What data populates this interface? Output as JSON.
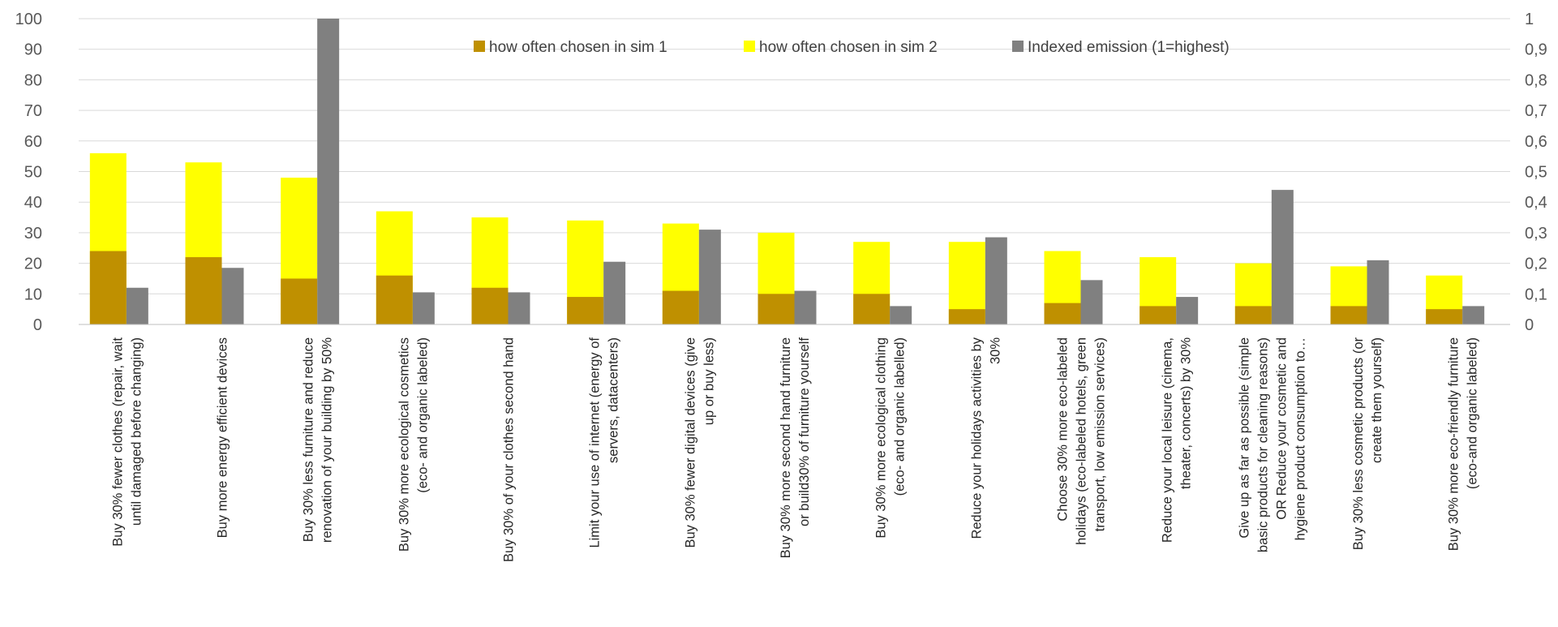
{
  "chart_data": {
    "type": "bar",
    "title": "",
    "xlabel": "",
    "ylabel": "",
    "ylim": [
      0,
      100
    ],
    "y2lim": [
      0,
      1
    ],
    "y_ticks": [
      "0",
      "10",
      "20",
      "30",
      "40",
      "50",
      "60",
      "70",
      "80",
      "90",
      "100"
    ],
    "y2_ticks": [
      "0",
      "0,1",
      "0,2",
      "0,3",
      "0,4",
      "0,5",
      "0,6",
      "0,7",
      "0,8",
      "0,9",
      "1"
    ],
    "grid": true,
    "legend_position": "top-center",
    "categories": [
      [
        "Buy 30% fewer clothes  (repair, wait",
        "until damaged before changing)"
      ],
      [
        "Buy more energy efficient devices"
      ],
      [
        "Buy 30% less furniture and reduce",
        "renovation of your building by 50%"
      ],
      [
        "Buy 30% more ecological cosmetics",
        "(eco- and organic labeled)"
      ],
      [
        "Buy 30% of your clothes second hand"
      ],
      [
        "Limit your use of internet (energy of",
        "servers, datacenters)"
      ],
      [
        "Buy 30% fewer digital devices (give",
        "up or buy less)"
      ],
      [
        "Buy 30% more second hand furniture",
        "or build30% of furniture yourself"
      ],
      [
        "Buy 30% more ecological clothing",
        "(eco- and organic labelled)"
      ],
      [
        "Reduce your holidays activities by",
        "30%"
      ],
      [
        "Choose 30% more eco-labeled",
        "holidays (eco-labeled hotels, green",
        "transport, low emission services)"
      ],
      [
        "Reduce your local leisure (cinema,",
        "theater, concerts) by 30%"
      ],
      [
        "Give up as far as possible (simple",
        "basic products for cleaning reasons)",
        "OR Reduce your cosmetic and",
        "hygiene product consumption to…"
      ],
      [
        "Buy 30% less cosmetic products (or",
        "create them yourself)"
      ],
      [
        "Buy 30% more eco-friendly furniture",
        "(eco-and organic labeled)"
      ]
    ],
    "series": [
      {
        "name": "how often chosen in sim 1",
        "color": "#bf9000",
        "axis": "left",
        "values": [
          24,
          22,
          15,
          16,
          12,
          9,
          11,
          10,
          10,
          5,
          7,
          6,
          6,
          6,
          5
        ]
      },
      {
        "name": "how often chosen in sim 2",
        "color": "#ffff00",
        "axis": "left",
        "values": [
          56,
          53,
          48,
          37,
          35,
          34,
          33,
          30,
          27,
          27,
          24,
          22,
          20,
          19,
          16
        ]
      },
      {
        "name": "Indexed emission (1=highest)",
        "color": "#808080",
        "axis": "right",
        "values": [
          0.12,
          0.185,
          1.0,
          0.105,
          0.105,
          0.205,
          0.31,
          0.11,
          0.06,
          0.285,
          0.145,
          0.09,
          0.44,
          0.21,
          0.06
        ]
      }
    ]
  }
}
